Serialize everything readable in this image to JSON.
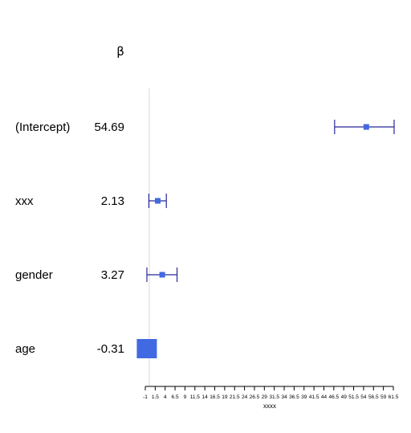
{
  "chart_data": {
    "type": "forest",
    "column_header": "β",
    "xlabel": "xxxx",
    "xlim": [
      -1,
      61.5
    ],
    "reference_line": 0,
    "ticks": [
      "-1",
      "1.5",
      "4",
      "6.5",
      "9",
      "11.5",
      "14",
      "16.5",
      "19",
      "21.5",
      "24",
      "26.5",
      "29",
      "31.5",
      "34",
      "36.5",
      "39",
      "41.5",
      "44",
      "46.5",
      "49",
      "51.5",
      "54",
      "56.5",
      "59",
      "61.5"
    ],
    "rows": [
      {
        "label": "(Intercept)",
        "estimate_text": "54.69",
        "estimate": 54.69,
        "lower": 46.7,
        "upper": 61.7
      },
      {
        "label": "xxx",
        "estimate_text": "2.13",
        "estimate": 2.13,
        "lower": -0.1,
        "upper": 4.3
      },
      {
        "label": "gender",
        "estimate_text": "3.27",
        "estimate": 3.27,
        "lower": -0.6,
        "upper": 7.0
      },
      {
        "label": "age",
        "estimate_text": "-0.31",
        "estimate": -0.31,
        "lower": -0.31,
        "upper": -0.31
      }
    ],
    "color": "#4169e1",
    "ci_color": "#27279a"
  }
}
